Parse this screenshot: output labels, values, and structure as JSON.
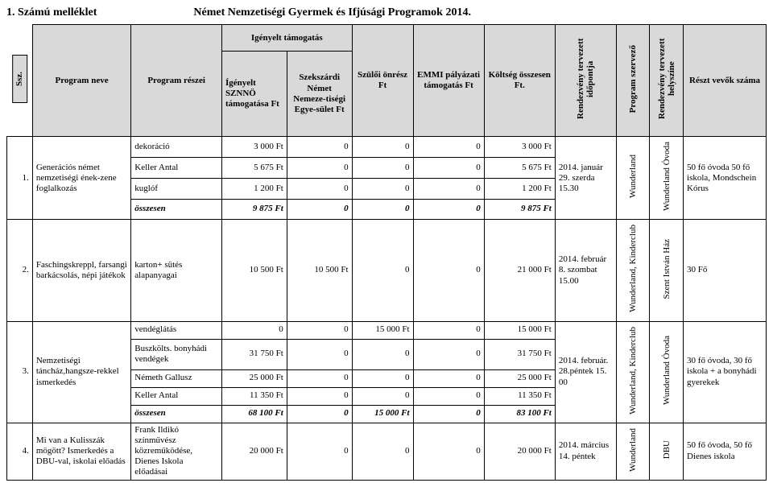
{
  "doc": {
    "left_title": "1. Számú melléklet",
    "center_title": "Német Nemzetiségi Gyermek és Ifjúsági Programok 2014."
  },
  "head": {
    "ssz": "Ssz.",
    "program_neve": "Program neve",
    "program_reszei": "Program részei",
    "igenyelt_group": "Igényelt támogatás",
    "igenyelt_sznno": "Ígényelt SZNNÖ támogatása Ft",
    "igenyelt_sze": "Szekszárdi Német Nemeze-tiségi Egye-sület Ft",
    "szuloi": "Szülői önrész Ft",
    "emmi": "EMMI pályázati támogatás Ft",
    "koltseg": "Költség összesen Ft.",
    "ido": "Rendezvény tervezett időpontja",
    "szerv": "Program szervező",
    "hely": "Rendezvény tervezett helyszíne",
    "resztvevo": "Részt vevők száma"
  },
  "p1": {
    "ssz": "1.",
    "nev": "Generációs német nemzetiségi ének-zene foglalkozás",
    "r1_n": "dekoráció",
    "r1_v1": "3 000 Ft",
    "r1_v2": "0",
    "r1_v3": "0",
    "r1_v4": "0",
    "r1_v5": "3 000 Ft",
    "r2_n": "Keller Antal",
    "r2_v1": "5 675 Ft",
    "r2_v2": "0",
    "r2_v3": "0",
    "r2_v4": "0",
    "r2_v5": "5 675 Ft",
    "r3_n": "kuglóf",
    "r3_v1": "1 200 Ft",
    "r3_v2": "0",
    "r3_v3": "0",
    "r3_v4": "0",
    "r3_v5": "1 200 Ft",
    "sum_n": "összesen",
    "sum_v1": "9 875 Ft",
    "sum_v2": "0",
    "sum_v3": "0",
    "sum_v4": "0",
    "sum_v5": "9 875 Ft",
    "ido": "2014. január 29. szerda 15.30",
    "szerv": "Wunderland",
    "hely": "Wunderland Óvoda",
    "resztvevo": "50 fő óvoda 50 fő iskola, Mondschein Kórus"
  },
  "p2": {
    "ssz": "2.",
    "nev": "Faschingskreppl, farsangi barkácsolás, népi játékok",
    "r1_n": "karton+ sütés alapanyagai",
    "r1_v1": "10 500 Ft",
    "r1_v2": "10 500 Ft",
    "r1_v3": "0",
    "r1_v4": "0",
    "r1_v5": "21 000 Ft",
    "ido": "2014. február 8. szombat 15.00",
    "szerv": "Wunderland, Kinderclub",
    "hely": "Szent István Ház",
    "resztvevo": "30 Fő"
  },
  "p3": {
    "ssz": "3.",
    "nev": "Nemzetiségi táncház,hangsze-rekkel ismerkedés",
    "r1_n": "vendéglátás",
    "r1_v1": "0",
    "r1_v2": "0",
    "r1_v3": "15 000 Ft",
    "r1_v4": "0",
    "r1_v5": "15 000 Ft",
    "r2_n": "Buszkölts. bonyhádi vendégek",
    "r2_v1": "31 750 Ft",
    "r2_v2": "0",
    "r2_v3": "0",
    "r2_v4": "0",
    "r2_v5": "31 750 Ft",
    "r3_n": "Németh Gallusz",
    "r3_v1": "25 000 Ft",
    "r3_v2": "0",
    "r3_v3": "0",
    "r3_v4": "0",
    "r3_v5": "25 000 Ft",
    "r4_n": "Keller Antal",
    "r4_v1": "11 350 Ft",
    "r4_v2": "0",
    "r4_v3": "0",
    "r4_v4": "0",
    "r4_v5": "11 350 Ft",
    "sum_n": "összesen",
    "sum_v1": "68 100 Ft",
    "sum_v2": "0",
    "sum_v3": "15 000 Ft",
    "sum_v4": "0",
    "sum_v5": "83 100 Ft",
    "ido": "2014. február. 28.péntek 15. 00",
    "szerv": "Wunderland, Kinderclub",
    "hely": "Wunderland Óvoda",
    "resztvevo": "30 fő óvoda, 30 fő iskola + a bonyhádi gyerekek"
  },
  "p4": {
    "ssz": "4.",
    "nev": "Mi van a Kulisszák mögött? Ismerkedés a DBU-val, iskolai előadás",
    "r1_n": "Frank Ildikó színművész közreműködése, Dienes Iskola előadásai",
    "r1_v1": "20 000 Ft",
    "r1_v2": "0",
    "r1_v3": "0",
    "r1_v4": "0",
    "r1_v5": "20 000 Ft",
    "ido": "2014. március 14. péntek",
    "szerv": "Wunderland",
    "hely": "DBU",
    "resztvevo": "50 fő óvoda, 50 fő Dienes iskola"
  }
}
